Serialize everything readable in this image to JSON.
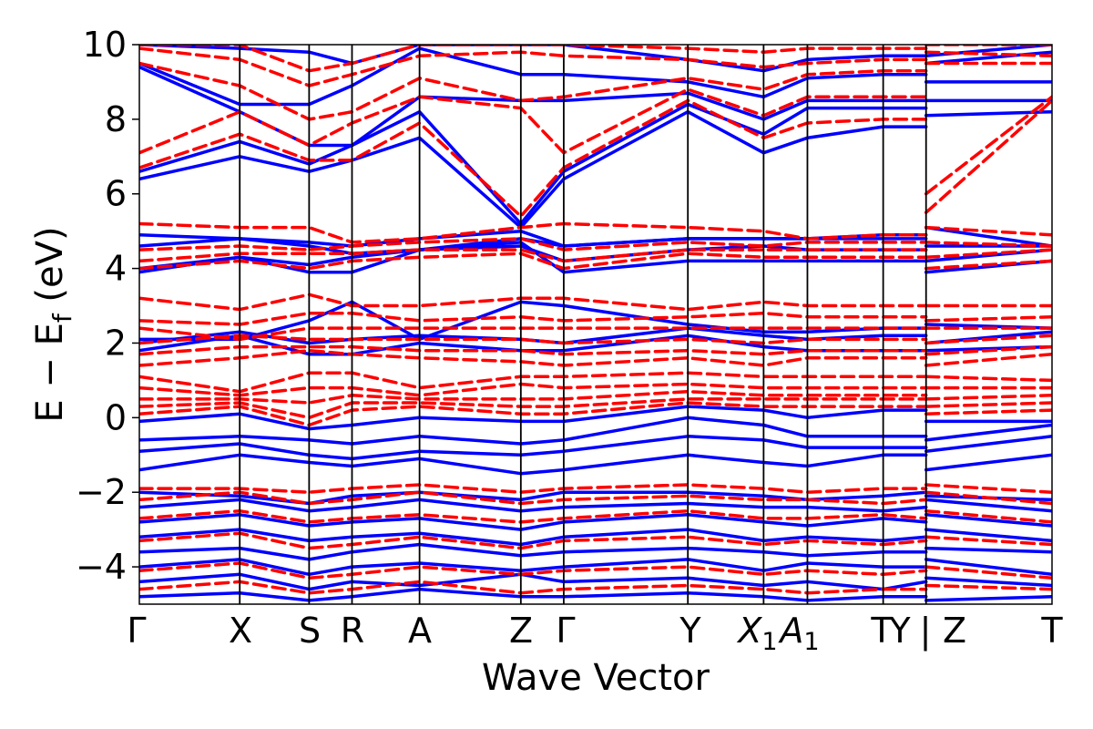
{
  "chart_data": {
    "type": "line",
    "title": "",
    "xlabel": "Wave Vector",
    "ylabel": "E − E_f (eV)",
    "ylabel_parts": {
      "main": "E − E",
      "sub": "f",
      "unit": " (eV)"
    },
    "ylim": [
      -5,
      10
    ],
    "yticks": [
      -4,
      -2,
      0,
      2,
      4,
      6,
      8,
      10
    ],
    "ytick_labels": [
      "−4",
      "−2",
      "0",
      "2",
      "4",
      "6",
      "8",
      "10"
    ],
    "grid": false,
    "legend": "none",
    "x_range": [
      0,
      1
    ],
    "kpoints": [
      {
        "label": "Γ",
        "x": 0.0
      },
      {
        "label": "X",
        "x": 0.11
      },
      {
        "label": "S",
        "x": 0.186
      },
      {
        "label": "R",
        "x": 0.233
      },
      {
        "label": "A",
        "x": 0.307
      },
      {
        "label": "Z",
        "x": 0.418
      },
      {
        "label": "Γ",
        "x": 0.465
      },
      {
        "label": "Y",
        "x": 0.601
      },
      {
        "label": "X₁",
        "x": 0.684
      },
      {
        "label": "A₁",
        "x": 0.732
      },
      {
        "label": "T",
        "x": 0.815
      },
      {
        "label": "Y",
        "x": 0.862
      },
      {
        "label": "Z",
        "x": 0.862
      },
      {
        "label": "T",
        "x": 1.0
      }
    ],
    "tick_label_text": [
      "Γ",
      "X",
      "S",
      "R",
      "A",
      "Z",
      "Γ",
      "Y",
      "X",
      "A",
      "T",
      "Y",
      "|",
      "Z",
      "T"
    ],
    "subscripts": [
      "1",
      "1"
    ],
    "series": [
      {
        "style": "solid",
        "color": "#0000ff",
        "bands": [
          [
            -4.8,
            -4.7,
            -4.9,
            -4.8,
            -4.6,
            -4.8,
            -4.8,
            -4.7,
            -4.8,
            -4.9,
            -4.8,
            -4.8,
            -4.9,
            -4.8
          ],
          [
            -4.4,
            -4.2,
            -4.6,
            -4.4,
            -4.5,
            -4.2,
            -4.4,
            -4.3,
            -4.5,
            -4.4,
            -4.6,
            -4.4,
            -4.3,
            -4.5
          ],
          [
            -4.0,
            -3.8,
            -4.2,
            -4.0,
            -3.9,
            -4.1,
            -4.0,
            -3.8,
            -4.1,
            -3.9,
            -4.0,
            -4.0,
            -3.8,
            -4.2
          ],
          [
            -3.6,
            -3.5,
            -3.8,
            -3.6,
            -3.4,
            -3.7,
            -3.6,
            -3.5,
            -3.6,
            -3.7,
            -3.6,
            -3.6,
            -3.5,
            -3.6
          ],
          [
            -3.2,
            -3.0,
            -3.3,
            -3.2,
            -3.1,
            -3.4,
            -3.2,
            -3.0,
            -3.3,
            -3.2,
            -3.3,
            -3.2,
            -3.0,
            -3.3
          ],
          [
            -2.8,
            -2.6,
            -2.9,
            -2.8,
            -2.7,
            -3.0,
            -2.8,
            -2.6,
            -2.8,
            -2.9,
            -2.7,
            -2.8,
            -2.6,
            -2.9
          ],
          [
            -2.4,
            -2.2,
            -2.5,
            -2.4,
            -2.2,
            -2.5,
            -2.4,
            -2.3,
            -2.4,
            -2.4,
            -2.5,
            -2.4,
            -2.2,
            -2.5
          ],
          [
            -2.0,
            -2.1,
            -2.3,
            -2.1,
            -2.0,
            -2.2,
            -2.0,
            -2.0,
            -2.1,
            -2.2,
            -2.1,
            -2.0,
            -2.1,
            -2.2
          ],
          [
            -1.4,
            -1.0,
            -1.2,
            -1.3,
            -1.1,
            -1.5,
            -1.4,
            -1.0,
            -1.2,
            -1.3,
            -1.0,
            -1.0,
            -1.4,
            -1.0
          ],
          [
            -0.9,
            -0.7,
            -1.0,
            -1.1,
            -0.9,
            -1.0,
            -0.9,
            -0.5,
            -0.6,
            -0.8,
            -0.8,
            -0.8,
            -0.9,
            -0.5
          ],
          [
            -0.6,
            -0.5,
            -0.6,
            -0.7,
            -0.5,
            -0.7,
            -0.6,
            0.0,
            -0.2,
            -0.5,
            -0.5,
            -0.5,
            -0.6,
            -0.2
          ],
          [
            -0.1,
            0.1,
            -0.3,
            -0.2,
            0.0,
            -0.1,
            -0.1,
            0.3,
            0.2,
            0.0,
            0.2,
            0.2,
            -0.1,
            -0.1
          ],
          [
            1.8,
            2.2,
            1.7,
            1.7,
            2.0,
            1.8,
            1.8,
            2.2,
            1.9,
            1.8,
            1.8,
            1.8,
            1.8,
            1.9
          ],
          [
            2.0,
            2.3,
            2.0,
            2.1,
            2.2,
            2.1,
            2.0,
            2.4,
            2.2,
            2.1,
            2.2,
            2.2,
            2.0,
            2.3
          ],
          [
            2.1,
            2.1,
            2.6,
            3.1,
            2.1,
            3.1,
            3.0,
            2.5,
            2.3,
            2.3,
            2.4,
            2.4,
            2.5,
            2.4
          ],
          [
            3.9,
            4.3,
            3.9,
            3.9,
            4.5,
            4.7,
            3.9,
            4.2,
            4.2,
            4.2,
            4.2,
            4.2,
            3.9,
            4.2
          ],
          [
            4.0,
            4.3,
            4.1,
            4.3,
            4.5,
            4.6,
            4.2,
            4.5,
            4.6,
            4.5,
            4.5,
            4.5,
            4.2,
            4.5
          ],
          [
            4.6,
            4.8,
            4.6,
            4.4,
            4.5,
            4.8,
            4.6,
            4.8,
            4.8,
            4.8,
            4.8,
            4.8,
            4.6,
            4.6
          ],
          [
            4.9,
            4.8,
            4.7,
            4.6,
            4.8,
            5.0,
            4.6,
            4.8,
            4.8,
            4.8,
            4.9,
            4.9,
            5.1,
            4.6
          ],
          [
            6.4,
            7.0,
            6.6,
            6.9,
            7.5,
            5.1,
            6.4,
            8.2,
            7.1,
            7.5,
            7.8,
            7.8,
            8.1,
            8.2
          ],
          [
            6.6,
            7.4,
            6.8,
            7.3,
            8.2,
            5.2,
            6.6,
            8.4,
            7.6,
            8.3,
            8.3,
            8.3,
            8.5,
            8.5
          ],
          [
            9.4,
            8.2,
            7.3,
            7.3,
            8.6,
            8.5,
            8.5,
            8.7,
            8.0,
            8.5,
            8.5,
            8.5,
            9.0,
            9.0
          ],
          [
            9.5,
            8.4,
            8.4,
            8.9,
            9.9,
            9.2,
            9.2,
            9.0,
            8.6,
            9.1,
            9.2,
            9.2,
            9.5,
            9.8
          ],
          [
            10.0,
            9.9,
            9.8,
            9.5,
            10.0,
            10.0,
            10.0,
            9.6,
            9.3,
            9.6,
            9.7,
            9.7,
            9.7,
            10.0
          ]
        ]
      },
      {
        "style": "dashed",
        "color": "#ff0000",
        "bands": [
          [
            -4.6,
            -4.4,
            -4.7,
            -4.6,
            -4.4,
            -4.7,
            -4.6,
            -4.5,
            -4.6,
            -4.7,
            -4.6,
            -4.6,
            -4.5,
            -4.6
          ],
          [
            -4.1,
            -3.9,
            -4.3,
            -4.2,
            -4.0,
            -4.2,
            -4.1,
            -4.0,
            -4.2,
            -4.1,
            -4.2,
            -4.1,
            -4.0,
            -4.3
          ],
          [
            -3.3,
            -3.1,
            -3.5,
            -3.4,
            -3.2,
            -3.5,
            -3.3,
            -3.2,
            -3.4,
            -3.3,
            -3.4,
            -3.3,
            -3.2,
            -3.4
          ],
          [
            -2.7,
            -2.5,
            -2.8,
            -2.7,
            -2.6,
            -2.8,
            -2.7,
            -2.5,
            -2.7,
            -2.7,
            -2.6,
            -2.7,
            -2.5,
            -2.8
          ],
          [
            -2.2,
            -2.0,
            -2.3,
            -2.2,
            -2.0,
            -2.3,
            -2.2,
            -2.1,
            -2.2,
            -2.2,
            -2.3,
            -2.2,
            -2.0,
            -2.3
          ],
          [
            -1.9,
            -1.9,
            -2.0,
            -1.9,
            -1.8,
            -2.0,
            -1.9,
            -1.8,
            -1.9,
            -2.0,
            -1.9,
            -1.9,
            -1.8,
            -2.0
          ],
          [
            0.1,
            0.3,
            -0.2,
            0.2,
            0.3,
            0.1,
            0.1,
            0.4,
            0.3,
            0.3,
            0.3,
            0.3,
            0.1,
            0.2
          ],
          [
            0.3,
            0.4,
            0.0,
            0.4,
            0.4,
            0.3,
            0.3,
            0.5,
            0.5,
            0.5,
            0.5,
            0.5,
            0.3,
            0.4
          ],
          [
            0.5,
            0.5,
            0.4,
            0.6,
            0.5,
            0.5,
            0.5,
            0.7,
            0.6,
            0.6,
            0.6,
            0.6,
            0.5,
            0.6
          ],
          [
            0.8,
            0.6,
            0.8,
            0.8,
            0.6,
            0.9,
            0.8,
            0.9,
            0.8,
            0.8,
            0.8,
            0.8,
            0.8,
            0.8
          ],
          [
            1.1,
            0.7,
            1.2,
            1.2,
            0.8,
            1.1,
            1.1,
            1.2,
            1.1,
            1.1,
            1.1,
            1.1,
            1.1,
            1.0
          ],
          [
            1.4,
            1.6,
            1.8,
            1.7,
            1.6,
            1.5,
            1.4,
            1.6,
            1.4,
            1.6,
            1.6,
            1.6,
            1.4,
            1.7
          ],
          [
            1.7,
            1.9,
            1.9,
            1.9,
            1.8,
            1.8,
            1.7,
            1.8,
            1.7,
            1.8,
            1.8,
            1.8,
            1.7,
            1.9
          ],
          [
            2.0,
            2.2,
            2.1,
            2.1,
            2.1,
            2.1,
            2.0,
            2.1,
            2.0,
            2.1,
            2.1,
            2.1,
            2.0,
            2.2
          ],
          [
            2.4,
            2.1,
            2.4,
            2.4,
            2.4,
            2.4,
            2.4,
            2.4,
            2.4,
            2.4,
            2.4,
            2.4,
            2.4,
            2.4
          ],
          [
            2.6,
            2.5,
            2.8,
            2.8,
            2.6,
            2.7,
            2.6,
            2.7,
            2.8,
            2.7,
            2.7,
            2.7,
            2.6,
            2.7
          ],
          [
            3.2,
            2.9,
            3.3,
            3.0,
            3.0,
            3.2,
            3.2,
            2.9,
            3.1,
            3.0,
            3.0,
            3.0,
            3.0,
            3.0
          ],
          [
            4.0,
            4.2,
            4.0,
            4.2,
            4.3,
            4.4,
            4.0,
            4.4,
            4.3,
            4.3,
            4.3,
            4.3,
            4.0,
            4.2
          ],
          [
            4.2,
            4.4,
            4.4,
            4.4,
            4.5,
            4.5,
            4.2,
            4.5,
            4.5,
            4.5,
            4.5,
            4.5,
            4.3,
            4.5
          ],
          [
            4.5,
            4.6,
            4.5,
            4.6,
            4.7,
            4.8,
            4.5,
            4.7,
            4.6,
            4.7,
            4.7,
            4.7,
            4.7,
            4.6
          ],
          [
            5.2,
            5.1,
            5.1,
            4.7,
            4.8,
            5.1,
            5.2,
            5.1,
            5.0,
            4.8,
            4.9,
            4.9,
            5.1,
            4.9
          ],
          [
            6.7,
            7.6,
            6.9,
            6.9,
            7.9,
            5.4,
            6.7,
            8.5,
            7.5,
            7.9,
            8.0,
            8.0,
            5.5,
            8.5
          ],
          [
            7.1,
            8.2,
            7.3,
            7.9,
            8.6,
            8.3,
            7.1,
            8.8,
            8.1,
            8.6,
            8.6,
            8.6,
            6.0,
            8.6
          ],
          [
            9.5,
            8.9,
            8.0,
            8.2,
            9.1,
            8.5,
            8.6,
            9.1,
            8.8,
            9.2,
            9.3,
            9.3,
            9.5,
            9.5
          ],
          [
            9.9,
            9.6,
            8.9,
            9.2,
            9.7,
            9.8,
            9.7,
            9.6,
            9.4,
            9.5,
            9.6,
            9.6,
            9.8,
            9.7
          ],
          [
            10.0,
            10.0,
            9.3,
            9.5,
            10.0,
            10.0,
            10.0,
            9.9,
            9.8,
            9.9,
            9.9,
            9.9,
            10.0,
            10.0
          ]
        ]
      }
    ]
  }
}
